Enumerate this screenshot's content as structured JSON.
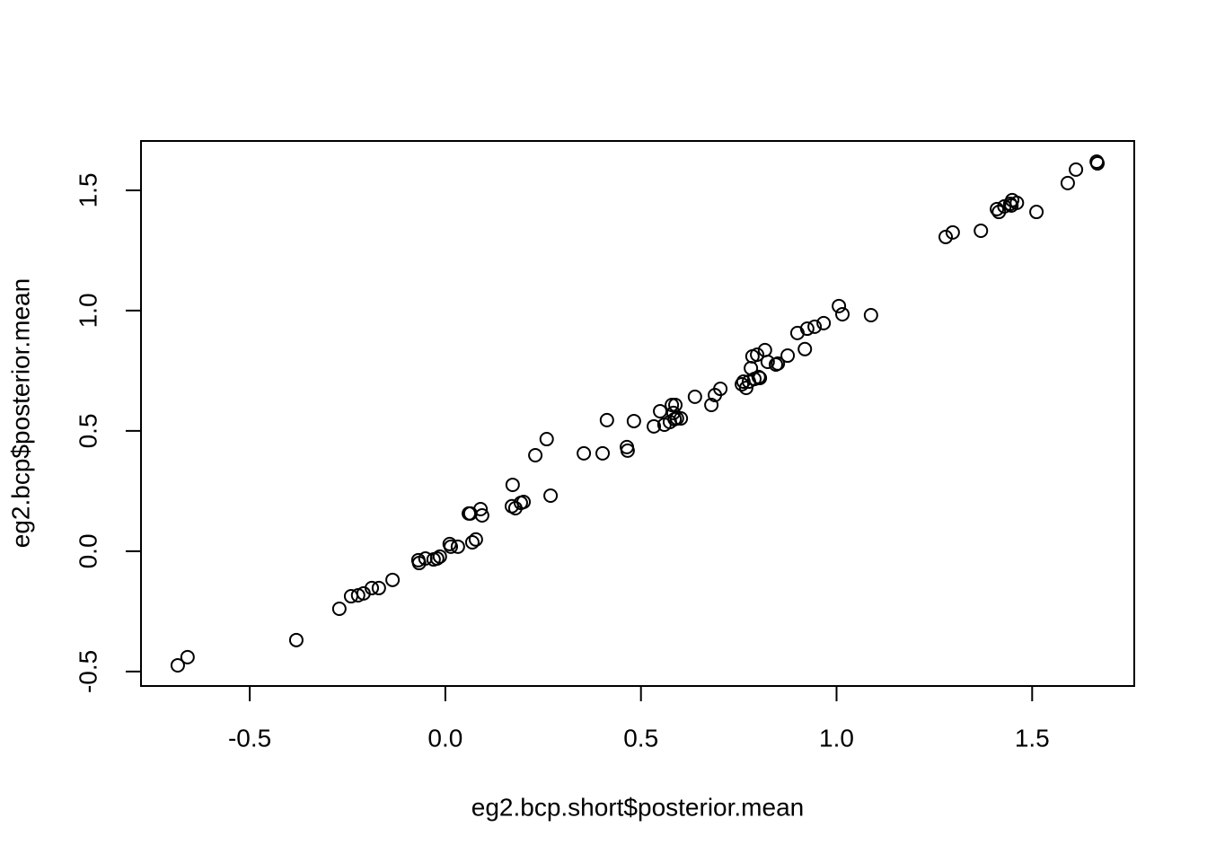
{
  "chart_data": {
    "type": "scatter",
    "x_label": "eg2.bcp.short$posterior.mean",
    "y_label": "eg2.bcp$posterior.mean",
    "xlim": [
      -0.778,
      1.761
    ],
    "ylim": [
      -0.56,
      1.705
    ],
    "xticks": [
      -0.5,
      {
        "value": 0,
        "label": "0.0"
      },
      0.5,
      {
        "value": 1,
        "label": "1.0"
      },
      1.5
    ],
    "yticks": [
      -0.5,
      {
        "value": 0,
        "label": "0.0"
      },
      0.5,
      {
        "value": 1,
        "label": "1.0"
      },
      1.5
    ],
    "color": "#000000",
    "x": [
      -0.684,
      -0.659,
      -0.381,
      -0.271,
      -0.241,
      -0.223,
      -0.209,
      -0.188,
      -0.17,
      -0.135,
      -0.069,
      -0.067,
      -0.051,
      -0.03,
      -0.021,
      -0.014,
      0.011,
      0.014,
      0.032,
      0.069,
      0.078,
      0.06,
      0.064,
      0.09,
      0.094,
      0.172,
      0.17,
      0.179,
      0.193,
      0.2,
      0.23,
      0.259,
      0.269,
      0.354,
      0.402,
      0.413,
      0.464,
      0.466,
      0.482,
      0.533,
      0.549,
      0.56,
      0.574,
      0.579,
      0.588,
      0.583,
      0.586,
      0.592,
      0.602,
      0.638,
      0.68,
      0.689,
      0.703,
      0.758,
      0.762,
      0.769,
      0.776,
      0.781,
      0.79,
      0.801,
      0.804,
      0.785,
      0.797,
      0.817,
      0.824,
      0.845,
      0.85,
      0.875,
      0.9,
      0.919,
      0.925,
      0.944,
      0.967,
      1.006,
      1.015,
      1.088,
      1.279,
      1.297,
      1.369,
      1.41,
      1.415,
      1.429,
      1.444,
      1.449,
      1.447,
      1.461,
      1.511,
      1.591,
      1.612,
      1.665,
      1.667
    ],
    "values": [
      -0.474,
      -0.44,
      -0.369,
      -0.239,
      -0.187,
      -0.183,
      -0.175,
      -0.153,
      -0.153,
      -0.119,
      -0.037,
      -0.049,
      -0.03,
      -0.034,
      -0.03,
      -0.022,
      0.03,
      0.019,
      0.019,
      0.037,
      0.049,
      0.157,
      0.157,
      0.175,
      0.149,
      0.276,
      0.187,
      0.179,
      0.201,
      0.205,
      0.399,
      0.466,
      0.231,
      0.407,
      0.407,
      0.545,
      0.433,
      0.418,
      0.541,
      0.519,
      0.582,
      0.526,
      0.537,
      0.608,
      0.608,
      0.575,
      0.549,
      0.552,
      0.552,
      0.642,
      0.608,
      0.649,
      0.675,
      0.694,
      0.705,
      0.679,
      0.705,
      0.761,
      0.716,
      0.724,
      0.72,
      0.81,
      0.817,
      0.836,
      0.787,
      0.776,
      0.78,
      0.813,
      0.907,
      0.84,
      0.925,
      0.933,
      0.948,
      1.019,
      0.985,
      0.981,
      1.306,
      1.325,
      1.332,
      1.422,
      1.41,
      1.433,
      1.444,
      1.459,
      1.437,
      1.448,
      1.41,
      1.53,
      1.586,
      1.619,
      1.612
    ]
  }
}
